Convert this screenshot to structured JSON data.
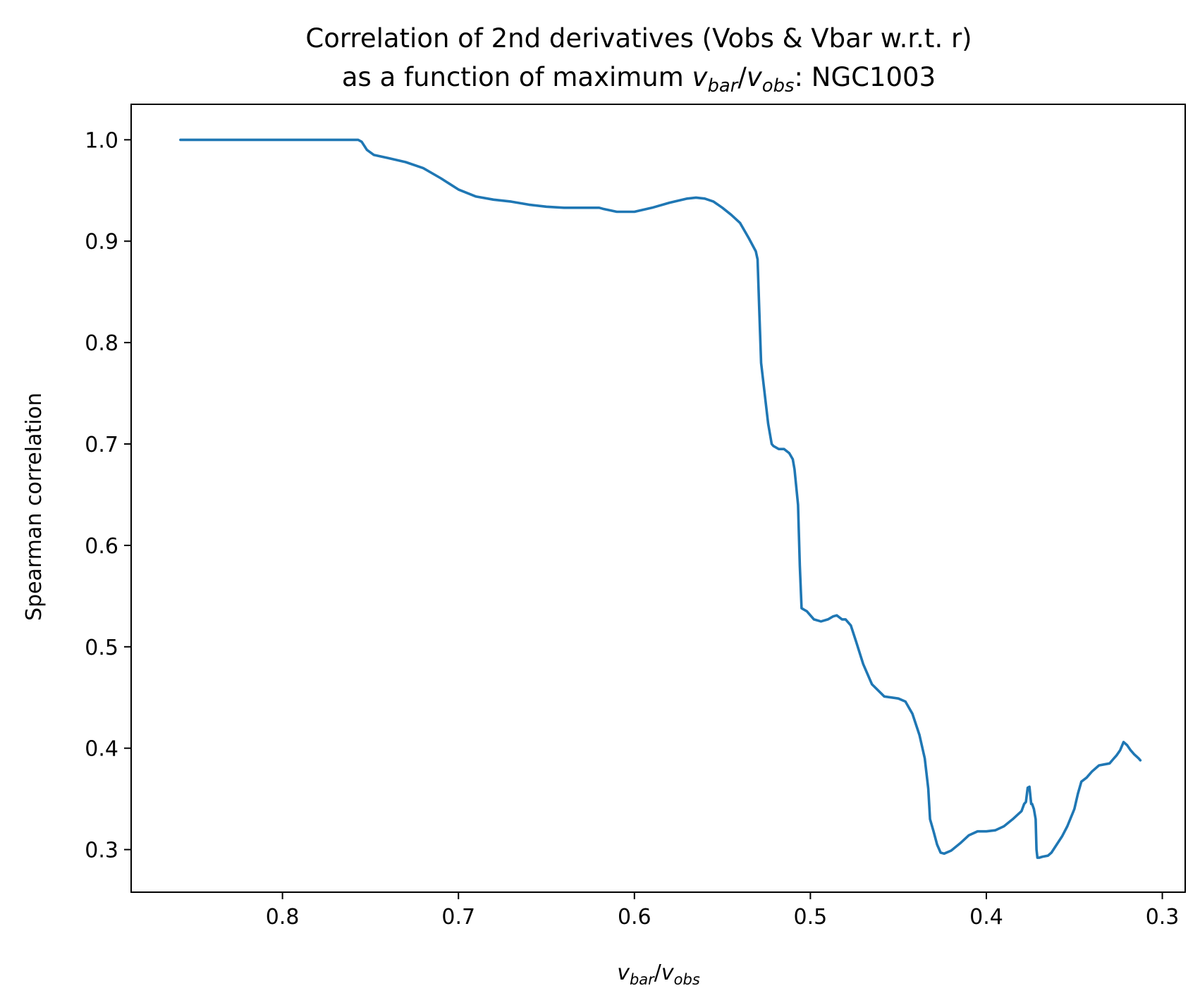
{
  "chart_data": {
    "type": "line",
    "title_line1": "Correlation of 2nd derivatives (Vobs & Vbar w.r.t. r)",
    "title_line2_prefix": "as a function of maximum ",
    "title_line2_suffix": ": NGC1003",
    "ratio_label": {
      "v1": "v",
      "sub1": "bar",
      "slash": "/",
      "v2": "v",
      "sub2": "obs"
    },
    "xlabel": "v_bar/v_obs",
    "ylabel": "Spearman correlation",
    "xlim": [
      0.886,
      0.287
    ],
    "ylim": [
      0.258,
      1.035
    ],
    "x_inverted": true,
    "grid": false,
    "legend": "none",
    "xticks": [
      0.8,
      0.7,
      0.6,
      0.5,
      0.4,
      0.3
    ],
    "xtick_labels": [
      "0.8",
      "0.7",
      "0.6",
      "0.5",
      "0.4",
      "0.3"
    ],
    "yticks": [
      0.3,
      0.4,
      0.5,
      0.6,
      0.7,
      0.8,
      0.9,
      1.0
    ],
    "ytick_labels": [
      "0.3",
      "0.4",
      "0.5",
      "0.6",
      "0.7",
      "0.8",
      "0.9",
      "1.0"
    ],
    "series": [
      {
        "color": "#1f77b4",
        "x": [
          0.858,
          0.8,
          0.757,
          0.755,
          0.752,
          0.748,
          0.74,
          0.73,
          0.72,
          0.71,
          0.7,
          0.69,
          0.68,
          0.67,
          0.66,
          0.65,
          0.64,
          0.63,
          0.62,
          0.618,
          0.61,
          0.6,
          0.59,
          0.58,
          0.57,
          0.565,
          0.56,
          0.555,
          0.55,
          0.545,
          0.54,
          0.535,
          0.531,
          0.53,
          0.529,
          0.528,
          0.526,
          0.524,
          0.522,
          0.521,
          0.518,
          0.515,
          0.512,
          0.51,
          0.509,
          0.507,
          0.506,
          0.505,
          0.504,
          0.502,
          0.498,
          0.494,
          0.49,
          0.487,
          0.485,
          0.482,
          0.48,
          0.477,
          0.474,
          0.47,
          0.465,
          0.458,
          0.45,
          0.446,
          0.442,
          0.438,
          0.435,
          0.433,
          0.432,
          0.43,
          0.428,
          0.426,
          0.424,
          0.42,
          0.415,
          0.41,
          0.405,
          0.4,
          0.395,
          0.39,
          0.385,
          0.38,
          0.3785,
          0.3775,
          0.3765,
          0.3755,
          0.3745,
          0.374,
          0.373,
          0.372,
          0.3715,
          0.371,
          0.37,
          0.368,
          0.365,
          0.363,
          0.36,
          0.357,
          0.354,
          0.35,
          0.348,
          0.346,
          0.343,
          0.34,
          0.336,
          0.333,
          0.33,
          0.328,
          0.326,
          0.324,
          0.322,
          0.32,
          0.318,
          0.316,
          0.3135,
          0.3125
        ],
        "y": [
          1.0,
          1.0,
          1.0,
          0.998,
          0.99,
          0.985,
          0.982,
          0.978,
          0.972,
          0.962,
          0.951,
          0.944,
          0.941,
          0.939,
          0.936,
          0.934,
          0.933,
          0.933,
          0.933,
          0.932,
          0.929,
          0.929,
          0.933,
          0.938,
          0.942,
          0.943,
          0.942,
          0.939,
          0.933,
          0.926,
          0.918,
          0.903,
          0.89,
          0.882,
          0.83,
          0.78,
          0.75,
          0.72,
          0.7,
          0.698,
          0.695,
          0.695,
          0.691,
          0.685,
          0.675,
          0.64,
          0.58,
          0.538,
          0.537,
          0.535,
          0.527,
          0.525,
          0.527,
          0.53,
          0.531,
          0.527,
          0.527,
          0.521,
          0.505,
          0.483,
          0.463,
          0.451,
          0.449,
          0.446,
          0.434,
          0.413,
          0.39,
          0.36,
          0.33,
          0.318,
          0.305,
          0.297,
          0.296,
          0.299,
          0.306,
          0.314,
          0.318,
          0.318,
          0.319,
          0.323,
          0.33,
          0.338,
          0.345,
          0.347,
          0.361,
          0.362,
          0.345,
          0.345,
          0.34,
          0.33,
          0.3,
          0.292,
          0.292,
          0.293,
          0.294,
          0.297,
          0.305,
          0.313,
          0.323,
          0.34,
          0.355,
          0.367,
          0.371,
          0.377,
          0.383,
          0.384,
          0.385,
          0.389,
          0.393,
          0.398,
          0.406,
          0.403,
          0.398,
          0.394,
          0.39,
          0.388
        ]
      }
    ]
  }
}
